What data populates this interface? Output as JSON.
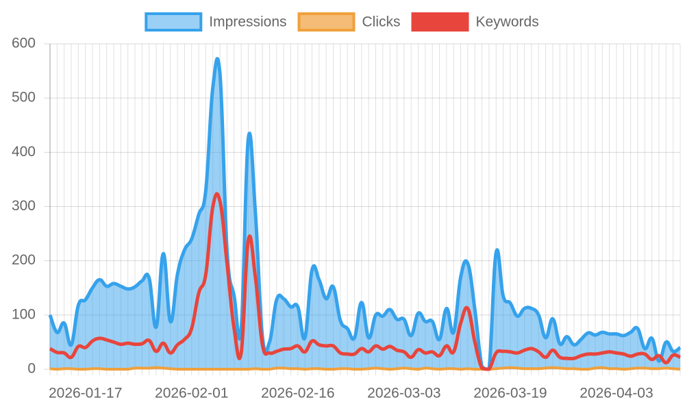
{
  "chart_data": {
    "type": "line",
    "categories": [
      null,
      null,
      null,
      null,
      null,
      "2026-01-17",
      null,
      null,
      null,
      null,
      null,
      null,
      null,
      null,
      null,
      null,
      null,
      null,
      null,
      null,
      "2026-02-01",
      null,
      null,
      null,
      null,
      null,
      null,
      null,
      null,
      null,
      null,
      null,
      null,
      null,
      null,
      "2026-02-16",
      null,
      null,
      null,
      null,
      null,
      null,
      null,
      null,
      null,
      null,
      null,
      null,
      null,
      null,
      "2026-03-03",
      null,
      null,
      null,
      null,
      null,
      null,
      null,
      null,
      null,
      null,
      null,
      null,
      null,
      null,
      "2026-03-19",
      null,
      null,
      null,
      null,
      null,
      null,
      null,
      null,
      null,
      null,
      null,
      null,
      null,
      null,
      "2026-04-03",
      null,
      null,
      null,
      null,
      null,
      null,
      null,
      null,
      null
    ],
    "series": [
      {
        "name": "Impressions",
        "color": "#36a2eb",
        "fill": "rgba(54,162,235,0.5)",
        "values": [
          100,
          68,
          85,
          45,
          118,
          128,
          150,
          165,
          153,
          158,
          153,
          148,
          152,
          163,
          168,
          78,
          213,
          88,
          175,
          220,
          240,
          285,
          330,
          520,
          545,
          220,
          135,
          75,
          425,
          290,
          60,
          50,
          128,
          130,
          115,
          115,
          58,
          183,
          165,
          130,
          152,
          90,
          75,
          58,
          123,
          58,
          100,
          98,
          110,
          92,
          92,
          62,
          103,
          88,
          88,
          55,
          112,
          68,
          170,
          195,
          110,
          5,
          0,
          215,
          135,
          122,
          98,
          112,
          112,
          100,
          58,
          93,
          47,
          60,
          45,
          55,
          67,
          63,
          68,
          65,
          65,
          62,
          68,
          75,
          38,
          57,
          15,
          50,
          33,
          40
        ]
      },
      {
        "name": "Clicks",
        "color": "#f0a03c",
        "fill": "rgba(240,160,60,0.7)",
        "values": [
          1,
          0,
          1,
          1,
          0,
          0,
          1,
          1,
          0,
          0,
          0,
          0,
          2,
          2,
          2,
          3,
          2,
          1,
          0,
          0,
          0,
          0,
          0,
          0,
          0,
          0,
          0,
          0,
          0,
          1,
          0,
          0,
          2,
          2,
          1,
          1,
          0,
          1,
          1,
          0,
          0,
          1,
          1,
          0,
          0,
          1,
          2,
          1,
          0,
          1,
          2,
          1,
          0,
          2,
          1,
          0,
          1,
          1,
          0,
          1,
          0,
          0,
          0,
          1,
          2,
          3,
          2,
          1,
          1,
          1,
          2,
          3,
          2,
          1,
          1,
          0,
          0,
          2,
          3,
          1,
          1,
          0,
          1,
          2,
          2,
          1,
          1,
          2,
          1,
          0
        ]
      },
      {
        "name": "Keywords",
        "color": "#e8453c",
        "fill": "#e8453c",
        "values": [
          38,
          31,
          30,
          22,
          42,
          40,
          52,
          57,
          54,
          50,
          46,
          48,
          46,
          47,
          53,
          33,
          48,
          30,
          45,
          55,
          75,
          140,
          175,
          300,
          310,
          195,
          75,
          30,
          238,
          170,
          45,
          30,
          33,
          37,
          38,
          43,
          32,
          52,
          45,
          43,
          43,
          30,
          28,
          28,
          38,
          32,
          43,
          37,
          42,
          35,
          32,
          22,
          36,
          30,
          32,
          25,
          43,
          32,
          85,
          112,
          50,
          2,
          0,
          30,
          33,
          32,
          30,
          35,
          38,
          32,
          22,
          35,
          22,
          20,
          20,
          25,
          28,
          28,
          30,
          32,
          30,
          28,
          24,
          28,
          28,
          18,
          25,
          12,
          26,
          22
        ]
      }
    ],
    "ylim": [
      0,
      600
    ],
    "yticks": [
      0,
      100,
      200,
      300,
      400,
      500,
      600
    ],
    "grid": true,
    "legend": "top"
  }
}
